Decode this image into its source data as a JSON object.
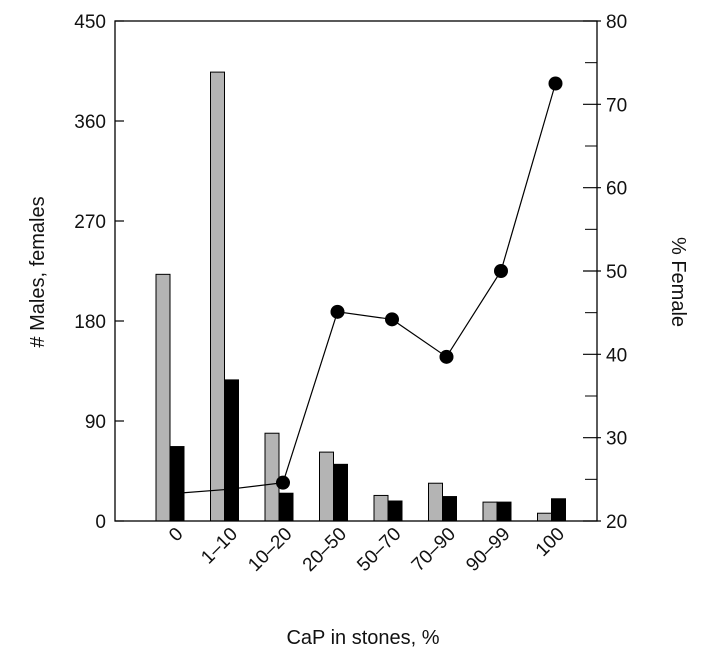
{
  "chart_data": {
    "type": "bar",
    "categories": [
      "0",
      "1–10",
      "10–20",
      "20–50",
      "50–70",
      "70–90",
      "90–99",
      "100"
    ],
    "xlabel": "CaP in stones, %",
    "ylabel": "# Males, females",
    "y2label": "% Female",
    "ylim": [
      0,
      450
    ],
    "y2lim": [
      20,
      80
    ],
    "yticks": [
      0,
      90,
      180,
      270,
      360,
      450
    ],
    "y2ticks": [
      20,
      30,
      40,
      50,
      60,
      70,
      80
    ],
    "y2minor": [
      25,
      35,
      45,
      55,
      65,
      75
    ],
    "grid": false,
    "legend": "none",
    "series": [
      {
        "type": "bar",
        "axis": "left",
        "color": "#b4b4b4",
        "values": [
          222,
          404,
          79,
          62,
          23,
          34,
          17,
          7
        ]
      },
      {
        "type": "bar",
        "axis": "left",
        "color": "#000000",
        "values": [
          67,
          127,
          25,
          51,
          18,
          22,
          17,
          20
        ]
      },
      {
        "type": "line",
        "axis": "right",
        "color": "#000000",
        "values": [
          23.3,
          23.8,
          24.6,
          45.1,
          44.2,
          39.7,
          50.0,
          72.5
        ],
        "markers": [
          false,
          false,
          true,
          true,
          true,
          true,
          true,
          true
        ]
      }
    ]
  }
}
